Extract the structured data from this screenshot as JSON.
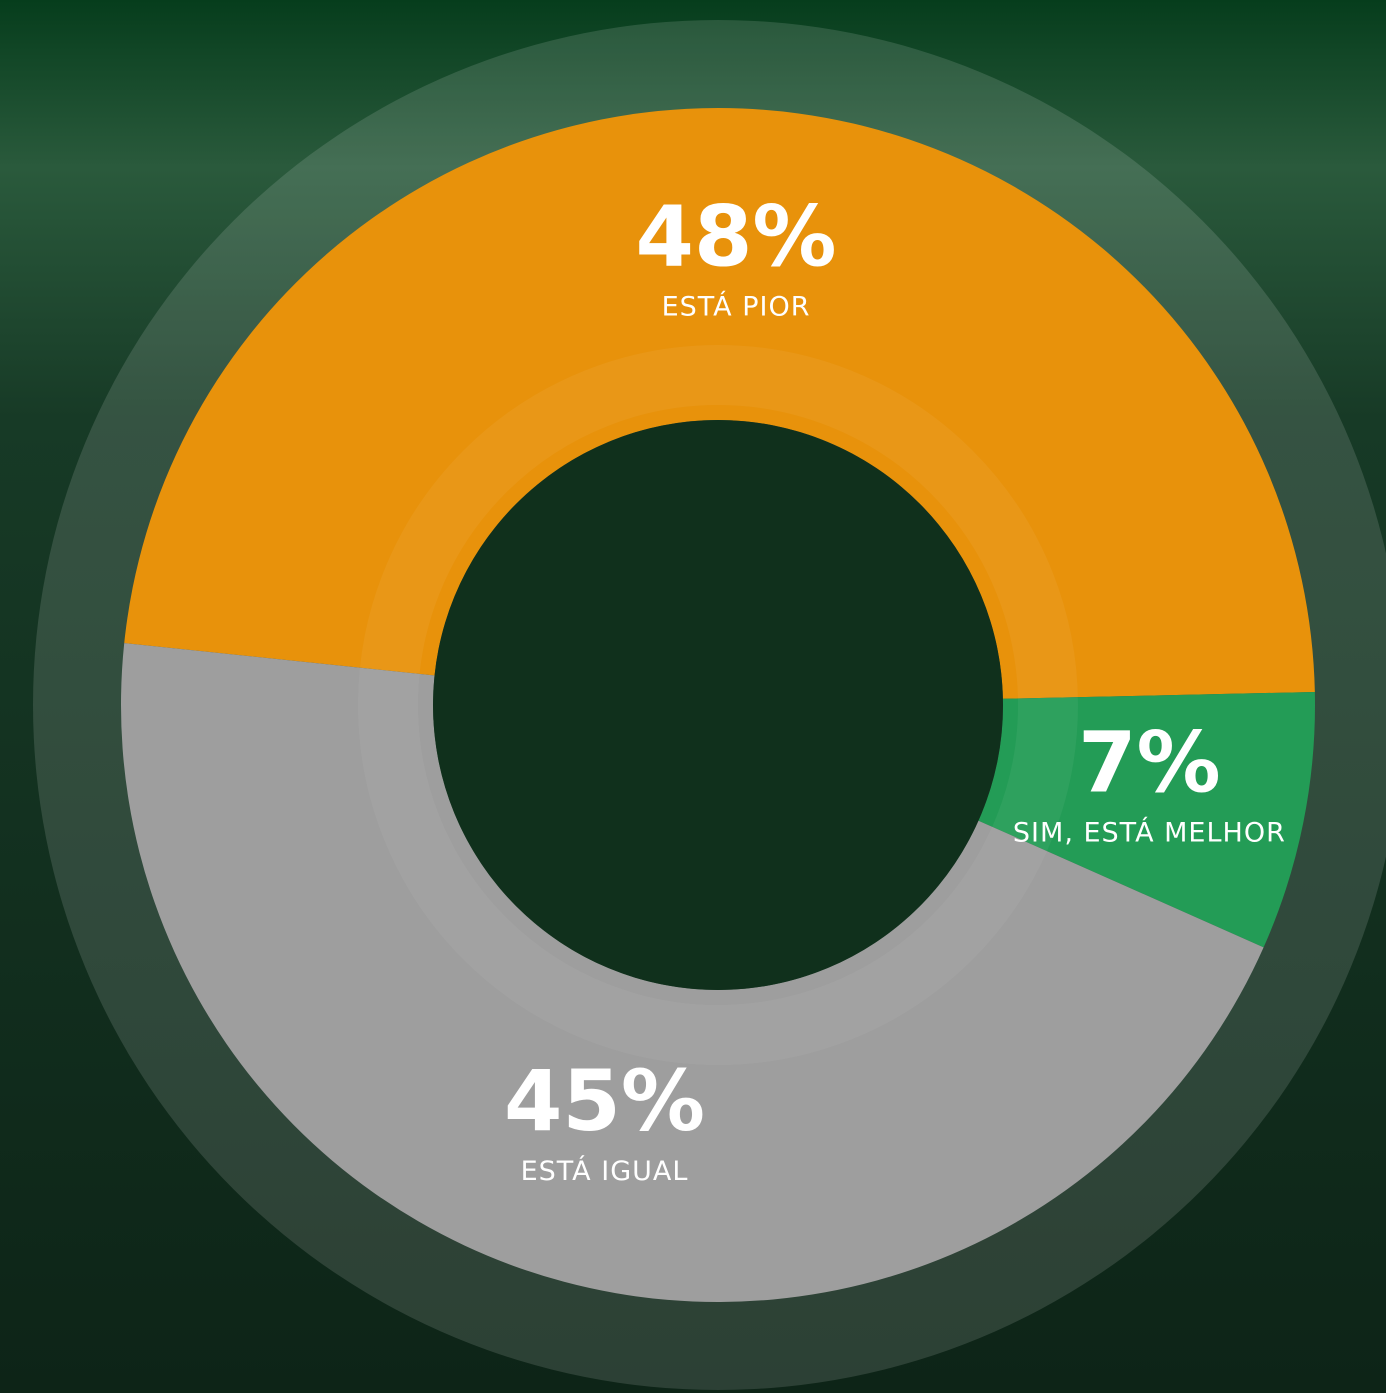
{
  "chart_data": {
    "type": "donut",
    "categories": [
      "ESTÁ PIOR",
      "SIM, ESTÁ MELHOR",
      "ESTÁ IGUAL"
    ],
    "values": [
      48,
      7,
      45
    ],
    "value_labels": [
      "48%",
      "7%",
      "45%"
    ],
    "colors": [
      "#e8920b",
      "#239c56",
      "#9e9e9e"
    ]
  }
}
